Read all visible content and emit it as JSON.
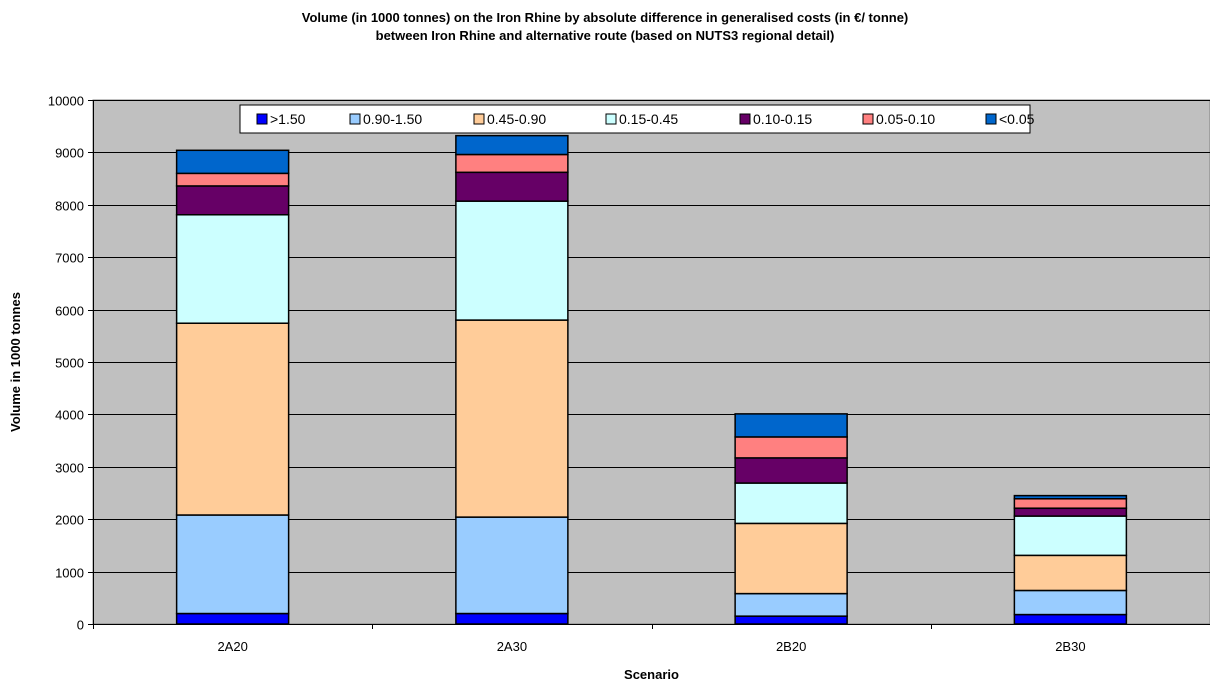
{
  "chart_data": {
    "type": "bar",
    "stacked": true,
    "title": [
      "Volume (in 1000 tonnes) on the Iron Rhine by absolute difference in generalised costs (in €/ tonne)",
      "between Iron Rhine and alternative route (based on NUTS3 regional detail)"
    ],
    "xlabel": "Scenario",
    "ylabel": "Volume in 1000 tonnes",
    "ylim": [
      0,
      10000
    ],
    "yticks": [
      "0",
      "1000",
      "2000",
      "3000",
      "4000",
      "5000",
      "6000",
      "7000",
      "8000",
      "9000",
      "10000"
    ],
    "grid": true,
    "legend_position": "top",
    "plot_background": "#C0C0C0",
    "categories": [
      "2A20",
      "2A30",
      "2B20",
      "2B30"
    ],
    "series": [
      {
        "name": ">1.50",
        "color": "#0000FF",
        "values": [
          200,
          200,
          150,
          180
        ]
      },
      {
        "name": "0.90-1.50",
        "color": "#99CCFF",
        "values": [
          1880,
          1840,
          430,
          460
        ]
      },
      {
        "name": "0.45-0.90",
        "color": "#FFCC99",
        "values": [
          3660,
          3760,
          1340,
          670
        ]
      },
      {
        "name": "0.15-0.45",
        "color": "#CCFFFF",
        "values": [
          2070,
          2270,
          770,
          750
        ]
      },
      {
        "name": "0.10-0.15",
        "color": "#660066",
        "values": [
          550,
          550,
          480,
          150
        ]
      },
      {
        "name": "0.05-0.10",
        "color": "#FF8080",
        "values": [
          240,
          340,
          400,
          180
        ]
      },
      {
        "name": "<0.05",
        "color": "#0066CC",
        "values": [
          440,
          360,
          440,
          60
        ]
      }
    ]
  }
}
